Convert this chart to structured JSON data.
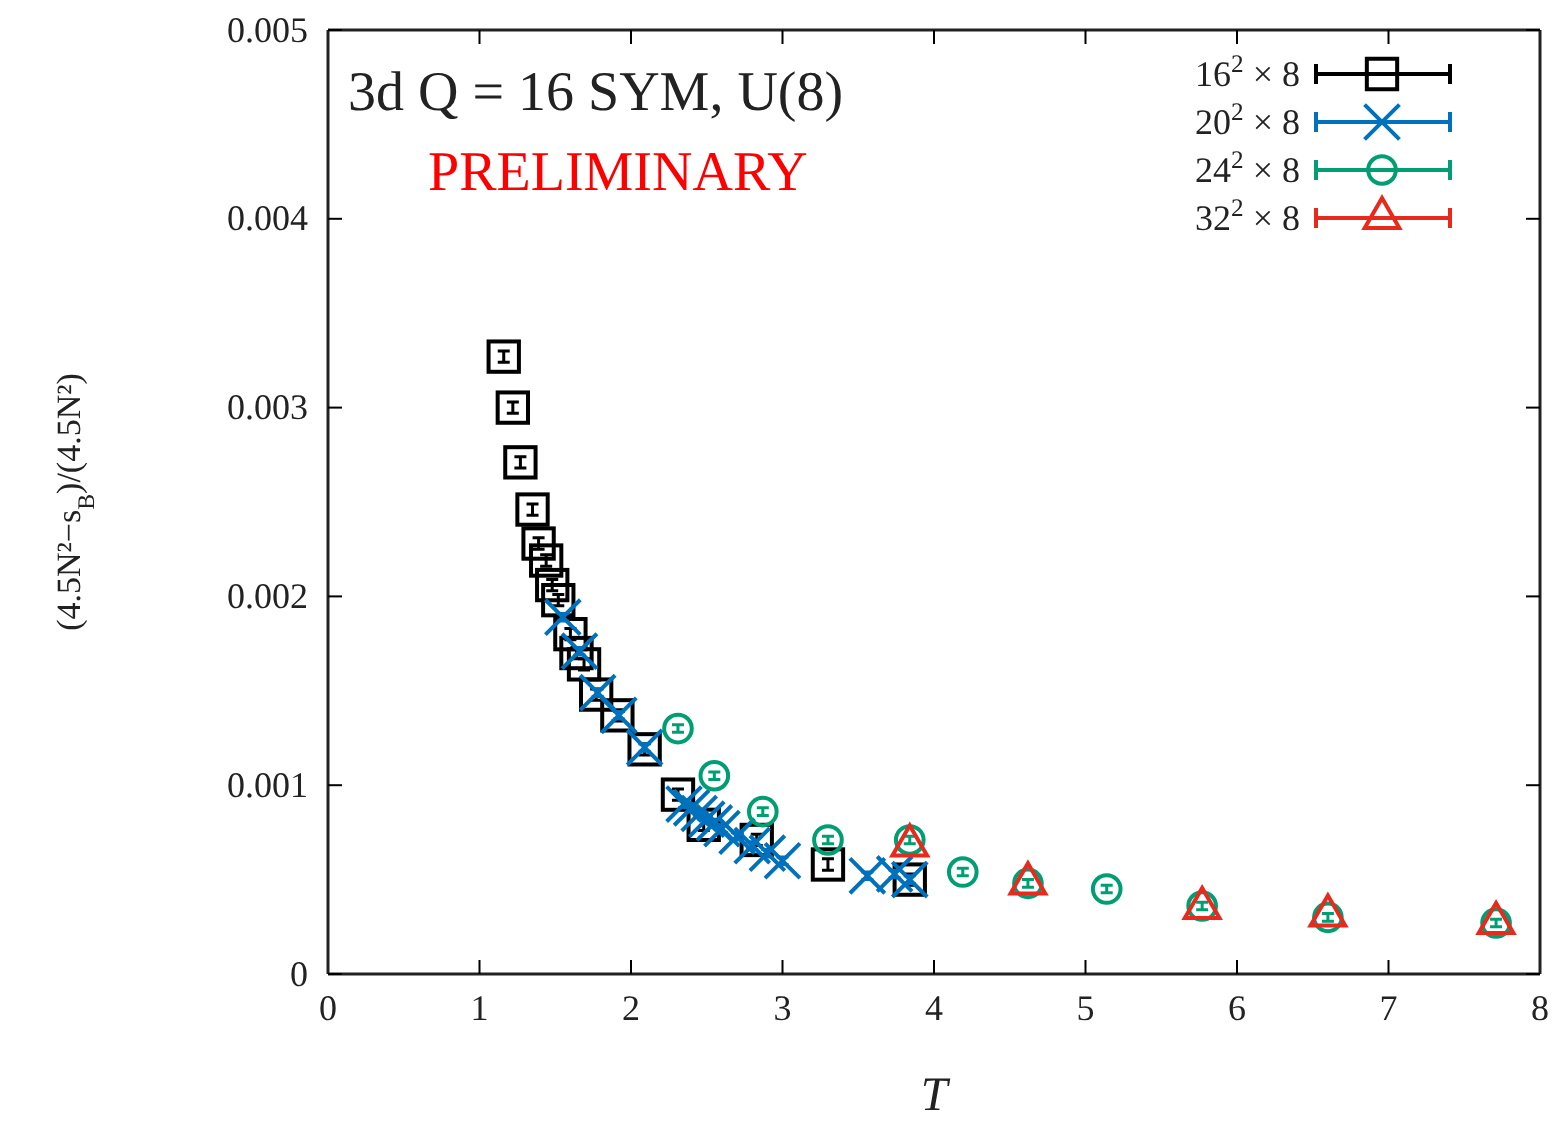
{
  "chart_data": {
    "type": "scatter",
    "title": "3d Q = 16 SYM, U(8)",
    "annotations": [
      "PRELIMINARY"
    ],
    "xlabel": "T",
    "ylabel": "(4.5N²−s$_{B}$)/(4.5N²)",
    "xlim": [
      0,
      8
    ],
    "xticks": [
      0,
      1,
      2,
      3,
      4,
      5,
      6,
      7,
      8
    ],
    "ylim": [
      0,
      0.005
    ],
    "yticks": [
      0,
      0.001,
      0.002,
      0.003,
      0.004,
      0.005
    ],
    "grid": false,
    "legend": "top right",
    "series": [
      {
        "name": "16$^{2}$ × 8",
        "color": "#000000",
        "marker": "square",
        "x": [
          1.16,
          1.22,
          1.27,
          1.35,
          1.39,
          1.44,
          1.48,
          1.52,
          1.6,
          1.64,
          1.69,
          1.77,
          1.91,
          2.09,
          2.31,
          2.48,
          2.83,
          3.3,
          3.84
        ],
        "values": [
          0.00327,
          0.003,
          0.00271,
          0.00246,
          0.00228,
          0.00219,
          0.00206,
          0.00198,
          0.0018,
          0.0017,
          0.00164,
          0.00148,
          0.00137,
          0.00119,
          0.00095,
          0.00079,
          0.00071,
          0.00058,
          0.0005
        ],
        "errors": [
          3e-05,
          3e-05,
          3e-05,
          3e-05,
          3e-05,
          3e-05,
          3e-05,
          3e-05,
          3e-05,
          3e-05,
          3e-05,
          3e-05,
          3e-05,
          3e-05,
          3e-05,
          3e-05,
          3e-05,
          3e-05,
          3e-05
        ]
      },
      {
        "name": "20$^{2}$ × 8",
        "color": "#0072bd",
        "marker": "cross",
        "x": [
          1.55,
          1.66,
          1.78,
          1.92,
          2.09,
          2.35,
          2.4,
          2.45,
          2.5,
          2.55,
          2.6,
          2.7,
          2.8,
          2.9,
          3.0,
          3.56,
          3.74,
          3.84
        ],
        "values": [
          0.00189,
          0.00171,
          0.00149,
          0.00137,
          0.0012,
          0.0009,
          0.00088,
          0.00085,
          0.00082,
          0.0008,
          0.00077,
          0.00073,
          0.00068,
          0.00064,
          0.0006,
          0.00052,
          0.00053,
          0.0005
        ],
        "errors": [
          2e-05,
          2e-05,
          2e-05,
          2e-05,
          2e-05,
          2e-05,
          2e-05,
          2e-05,
          2e-05,
          2e-05,
          2e-05,
          2e-05,
          2e-05,
          2e-05,
          2e-05,
          2e-05,
          2e-05,
          2e-05
        ]
      },
      {
        "name": "24$^{2}$ × 8",
        "color": "#009e73",
        "marker": "circle",
        "x": [
          2.31,
          2.55,
          2.87,
          3.3,
          3.84,
          4.19,
          4.62,
          5.14,
          5.77,
          6.6,
          7.71
        ],
        "values": [
          0.0013,
          0.00105,
          0.00086,
          0.00071,
          0.00071,
          0.00054,
          0.00048,
          0.00045,
          0.00036,
          0.0003,
          0.00027
        ],
        "errors": [
          2e-05,
          2e-05,
          2e-05,
          2e-05,
          2e-05,
          2e-05,
          2e-05,
          2e-05,
          2e-05,
          2e-05,
          2e-05
        ]
      },
      {
        "name": "32$^{2}$ × 8",
        "color": "#e8291c",
        "marker": "triangle",
        "x": [
          3.84,
          4.62,
          5.77,
          6.6,
          7.71
        ],
        "values": [
          0.00068,
          0.00048,
          0.00035,
          0.00031,
          0.00027
        ]
      }
    ]
  }
}
